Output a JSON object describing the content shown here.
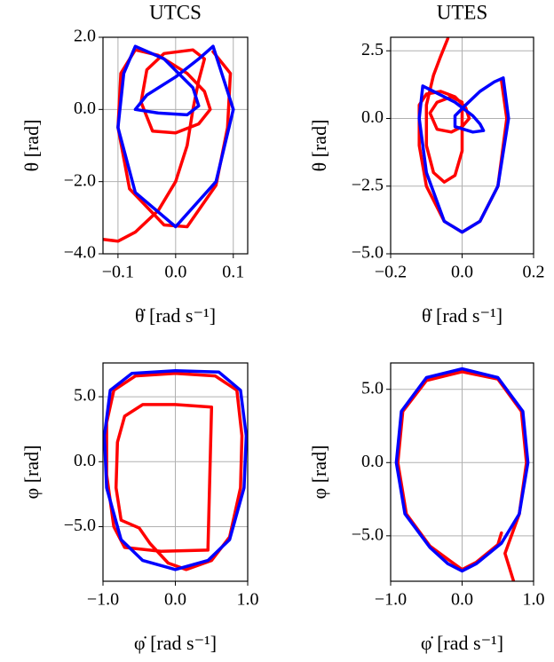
{
  "chart_data": [
    {
      "type": "line",
      "title": "UTCS",
      "x_label": "θ̇ [rad s⁻¹]",
      "y_label": "θ [rad]",
      "grid": true,
      "xlim": [
        -0.126,
        0.125
      ],
      "ylim": [
        -4,
        2
      ],
      "xticks": [
        {
          "value": -0.1,
          "label": "−0.1"
        },
        {
          "value": 0,
          "label": "0.0"
        },
        {
          "value": 0.1,
          "label": "0.1"
        }
      ],
      "yticks": [
        {
          "value": 2,
          "label": "2.0"
        },
        {
          "value": 0,
          "label": "0.0"
        },
        {
          "value": -2,
          "label": "−2.0"
        },
        {
          "value": -4,
          "label": "−4.0"
        }
      ],
      "series": [
        {
          "color": "#ff0000",
          "x": [
            -0.126,
            -0.1,
            -0.07,
            -0.03,
            0.0,
            0.02,
            0.03,
            0.04,
            0.05,
            0.03,
            -0.02,
            -0.05,
            -0.06,
            -0.04,
            0.0,
            0.04,
            0.06,
            0.05,
            0.02,
            -0.03,
            -0.07,
            -0.095,
            -0.1,
            -0.08,
            -0.02,
            0.02,
            0.07,
            0.09,
            0.095,
            0.065
          ],
          "values": [
            -3.6,
            -3.65,
            -3.4,
            -2.8,
            -2.0,
            -1.0,
            0.0,
            0.8,
            1.4,
            1.65,
            1.55,
            1.1,
            0.2,
            -0.6,
            -0.65,
            -0.4,
            0.0,
            0.5,
            1.0,
            1.5,
            1.65,
            1.0,
            -0.5,
            -2.2,
            -3.2,
            -3.25,
            -2.1,
            -0.5,
            1.0,
            1.6
          ]
        },
        {
          "color": "#0000ff",
          "x": [
            0.065,
            0.1,
            0.07,
            0.0,
            -0.07,
            -0.1,
            -0.09,
            -0.07,
            -0.02,
            0.03,
            0.04,
            0.02,
            -0.03,
            -0.07,
            -0.05,
            0.0,
            0.04,
            0.065
          ],
          "values": [
            1.75,
            0.0,
            -2.0,
            -3.25,
            -2.3,
            -0.5,
            1.0,
            1.75,
            1.4,
            0.6,
            0.1,
            -0.15,
            -0.1,
            0.0,
            0.4,
            0.9,
            1.4,
            1.75
          ]
        }
      ]
    },
    {
      "type": "line",
      "title": "UTES",
      "x_label": "θ̇ [rad s⁻¹]",
      "y_label": "θ [rad]",
      "grid": true,
      "xlim": [
        -0.2,
        0.2
      ],
      "ylim": [
        -5,
        3
      ],
      "xticks": [
        {
          "value": -0.2,
          "label": "−0.2"
        },
        {
          "value": 0,
          "label": "0.0"
        },
        {
          "value": 0.2,
          "label": "0.2"
        }
      ],
      "yticks": [
        {
          "value": 2.5,
          "label": "2.5"
        },
        {
          "value": 0,
          "label": "0.0"
        },
        {
          "value": -2.5,
          "label": "−2.5"
        },
        {
          "value": -5,
          "label": "−5.0"
        }
      ],
      "series": [
        {
          "color": "#ff0000",
          "x": [
            -0.04,
            -0.06,
            -0.08,
            -0.1,
            -0.1,
            -0.08,
            -0.05,
            -0.02,
            0.0,
            0.0,
            0.0,
            -0.03,
            -0.07,
            -0.09,
            -0.07,
            -0.03,
            0.0,
            0.02,
            0.01,
            -0.02,
            -0.06,
            -0.1,
            -0.12,
            -0.12,
            -0.1,
            -0.05,
            0.0,
            0.05,
            0.1,
            0.125,
            0.11
          ],
          "values": [
            2.95,
            2.3,
            1.6,
            0.5,
            -1.0,
            -2.0,
            -2.35,
            -2.1,
            -1.2,
            -0.3,
            0.6,
            0.8,
            0.6,
            0.2,
            -0.4,
            -0.5,
            -0.3,
            0.0,
            0.4,
            0.8,
            1.0,
            0.9,
            0.5,
            -1.0,
            -2.5,
            -3.8,
            -4.2,
            -3.8,
            -2.5,
            0.0,
            1.4
          ]
        },
        {
          "color": "#0000ff",
          "x": [
            0.115,
            0.13,
            0.1,
            0.05,
            0.0,
            -0.05,
            -0.1,
            -0.12,
            -0.11,
            -0.08,
            -0.02,
            0.03,
            0.05,
            0.06,
            0.03,
            -0.02,
            -0.02,
            0.01,
            0.05,
            0.09,
            0.115
          ],
          "values": [
            1.5,
            0.0,
            -2.5,
            -3.8,
            -4.2,
            -3.8,
            -2.0,
            0.0,
            1.2,
            1.0,
            0.6,
            0.1,
            -0.2,
            -0.45,
            -0.5,
            -0.3,
            0.1,
            0.5,
            1.0,
            1.35,
            1.5
          ]
        }
      ]
    },
    {
      "type": "line",
      "x_label": "φ̇ [rad s⁻¹]",
      "y_label": "φ [rad]",
      "grid": true,
      "xlim": [
        -1,
        1
      ],
      "ylim": [
        -9.2,
        7.6
      ],
      "xticks": [
        {
          "value": -1,
          "label": "−1.0"
        },
        {
          "value": 0,
          "label": "0.0"
        },
        {
          "value": 1,
          "label": "1.0"
        }
      ],
      "yticks": [
        {
          "value": 5,
          "label": "5.0"
        },
        {
          "value": 0,
          "label": "0.0"
        },
        {
          "value": -5,
          "label": "−5.0"
        }
      ],
      "series": [
        {
          "color": "#ff0000",
          "x": [
            0.5,
            0.45,
            -0.2,
            -0.7,
            -0.85,
            -0.95,
            -0.95,
            -0.85,
            -0.55,
            0.0,
            0.55,
            0.85,
            0.92,
            0.9,
            0.75,
            0.5,
            0.15,
            -0.1,
            -0.35,
            -0.5,
            -0.75,
            -0.82,
            -0.8,
            -0.7,
            -0.45,
            0.0,
            0.5
          ],
          "values": [
            4.2,
            -6.8,
            -6.9,
            -6.6,
            -5.0,
            -1.0,
            3.0,
            5.5,
            6.6,
            6.8,
            6.6,
            5.5,
            2.0,
            -2.0,
            -5.8,
            -7.6,
            -8.3,
            -7.8,
            -6.3,
            -5.1,
            -4.5,
            -2.0,
            1.5,
            3.5,
            4.4,
            4.4,
            4.2
          ]
        },
        {
          "color": "#0000ff",
          "x": [
            0.0,
            -0.45,
            -0.75,
            -0.95,
            -0.98,
            -0.9,
            -0.6,
            0.0,
            0.6,
            0.9,
            0.98,
            0.95,
            0.75,
            0.45,
            0.0
          ],
          "values": [
            -8.3,
            -7.6,
            -6.0,
            -2.0,
            2.0,
            5.5,
            6.8,
            7.0,
            6.9,
            5.5,
            2.0,
            -2.0,
            -6.0,
            -7.6,
            -8.3
          ]
        }
      ]
    },
    {
      "type": "line",
      "x_label": "φ̇ [rad s⁻¹]",
      "y_label": "φ [rad]",
      "grid": true,
      "xlim": [
        -1,
        1
      ],
      "ylim": [
        -8.1,
        6.8
      ],
      "xticks": [
        {
          "value": -1,
          "label": "−1.0"
        },
        {
          "value": 0,
          "label": "0.0"
        },
        {
          "value": 1,
          "label": "1.0"
        }
      ],
      "yticks": [
        {
          "value": 5,
          "label": "5.0"
        },
        {
          "value": 0,
          "label": "0.0"
        },
        {
          "value": -5,
          "label": "−5.0"
        }
      ],
      "series": [
        {
          "color": "#ff0000",
          "x": [
            0.72,
            0.6,
            0.8,
            0.9,
            0.83,
            0.5,
            0.0,
            -0.5,
            -0.83,
            -0.9,
            -0.78,
            -0.45,
            -0.2,
            0.0,
            0.2,
            0.5,
            0.55
          ],
          "values": [
            -8.1,
            -6.2,
            -3.5,
            0.0,
            3.5,
            5.7,
            6.2,
            5.6,
            3.5,
            0.0,
            -3.5,
            -5.7,
            -6.6,
            -7.3,
            -6.8,
            -5.6,
            -4.8
          ]
        },
        {
          "color": "#0000ff",
          "x": [
            0.0,
            -0.2,
            -0.45,
            -0.8,
            -0.92,
            -0.85,
            -0.5,
            0.0,
            0.5,
            0.85,
            0.92,
            0.8,
            0.55,
            0.2,
            0.0
          ],
          "values": [
            -7.4,
            -6.9,
            -5.8,
            -3.5,
            0.0,
            3.5,
            5.8,
            6.4,
            5.8,
            3.5,
            0.0,
            -3.5,
            -5.5,
            -6.9,
            -7.4
          ]
        }
      ]
    }
  ]
}
